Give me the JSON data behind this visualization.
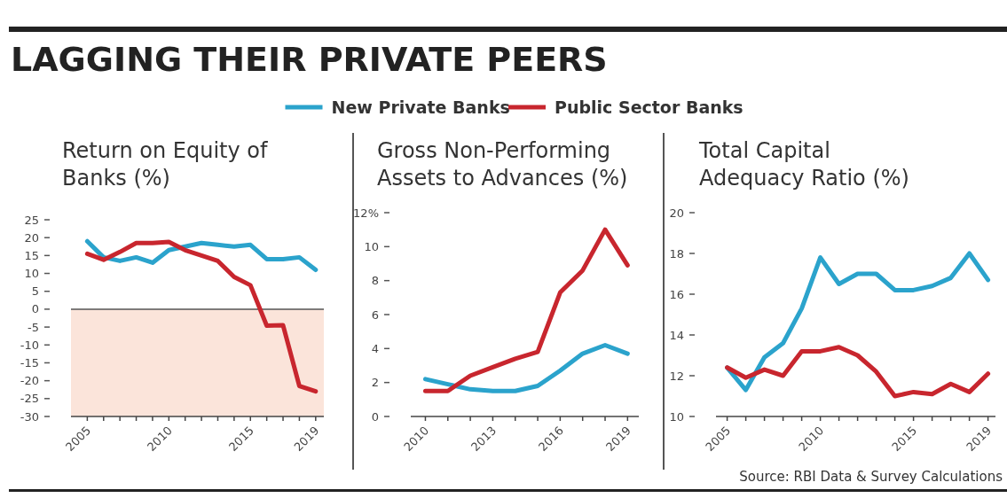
{
  "chart_data": [
    {
      "type": "line",
      "title": "Return on Equity of\nBanks (%)",
      "annotations": [
        "LAGGING THEIR PRIVATE PEERS"
      ],
      "legend": "top",
      "x": [
        2005,
        2006,
        2007,
        2008,
        2009,
        2010,
        2011,
        2012,
        2013,
        2014,
        2015,
        2016,
        2017,
        2018,
        2019
      ],
      "series": [
        {
          "name": "New Private Banks",
          "color": "#2ba3cc",
          "values": [
            19,
            14.5,
            13.5,
            14.5,
            13,
            16.5,
            17.5,
            18.5,
            18,
            17.5,
            18,
            14,
            14,
            14.5,
            11
          ]
        },
        {
          "name": "Public Sector Banks",
          "color": "#c8262e",
          "values": [
            15.5,
            13.8,
            16,
            18.5,
            18.5,
            18.8,
            16.5,
            15,
            13.5,
            9,
            6.7,
            -4.6,
            -4.5,
            -21.5,
            -23
          ]
        }
      ],
      "xlim": [
        2004,
        2019.5
      ],
      "xticks": [
        2005,
        {
          "value": 2006,
          "label": null
        },
        {
          "value": 2007,
          "label": null
        },
        {
          "value": 2008,
          "label": null
        },
        {
          "value": 2009,
          "label": null
        },
        2010,
        {
          "value": 2011,
          "label": null
        },
        {
          "value": 2012,
          "label": null
        },
        {
          "value": 2013,
          "label": null
        },
        {
          "value": 2014,
          "label": null
        },
        2015,
        {
          "value": 2016,
          "label": null
        },
        {
          "value": 2017,
          "label": null
        },
        {
          "value": 2018,
          "label": null
        },
        2019
      ],
      "ylim": [
        -30,
        25
      ],
      "yticks": [
        -30,
        -25,
        -20,
        -15,
        -10,
        -5,
        0,
        5,
        10,
        15,
        20,
        25
      ],
      "bands": [
        {
          "axis": "y",
          "from": -30,
          "to": 0,
          "color": "#fbe4da"
        }
      ],
      "ref_lines": [
        {
          "axis": "y",
          "value": 0,
          "color": "#555555"
        }
      ]
    },
    {
      "type": "line",
      "title": "Gross Non-Performing\nAssets to Advances (%)",
      "x": [
        2010,
        2011,
        2012,
        2013,
        2014,
        2015,
        2016,
        2017,
        2018,
        2019
      ],
      "series": [
        {
          "color": "#2ba3cc",
          "values": [
            2.2,
            1.9,
            1.6,
            1.5,
            1.5,
            1.8,
            2.7,
            3.7,
            4.2,
            3.7
          ]
        },
        {
          "color": "#c8262e",
          "values": [
            1.5,
            1.5,
            2.4,
            2.9,
            3.4,
            3.8,
            7.3,
            8.6,
            11,
            8.9
          ]
        }
      ],
      "xlim": [
        2009.35,
        2019.5
      ],
      "xticks": [
        2010,
        {
          "value": 2011,
          "label": null
        },
        {
          "value": 2012,
          "label": null
        },
        2013,
        {
          "value": 2014,
          "label": null
        },
        {
          "value": 2015,
          "label": null
        },
        2016,
        {
          "value": 2017,
          "label": null
        },
        {
          "value": 2018,
          "label": null
        },
        2019
      ],
      "ylim": [
        0,
        12
      ],
      "yticks": [
        0,
        2,
        4,
        6,
        8,
        10,
        {
          "value": 12,
          "label": "12%"
        }
      ]
    },
    {
      "type": "line",
      "title": "Total Capital\nAdequacy Ratio (%)",
      "annotations": [
        "Source: RBI Data & Survey Calculations"
      ],
      "x": [
        2005,
        2006,
        2007,
        2008,
        2009,
        2010,
        2011,
        2012,
        2013,
        2014,
        2015,
        2016,
        2017,
        2018,
        2019
      ],
      "series": [
        {
          "color": "#2ba3cc",
          "values": [
            12.4,
            11.3,
            12.9,
            13.6,
            15.3,
            17.8,
            16.5,
            17,
            17,
            16.2,
            16.2,
            16.4,
            16.8,
            18,
            16.7
          ]
        },
        {
          "color": "#c8262e",
          "values": [
            12.4,
            11.9,
            12.3,
            12,
            13.2,
            13.2,
            13.4,
            13,
            12.2,
            11,
            11.2,
            11.1,
            11.6,
            11.2,
            12.1
          ]
        }
      ],
      "xlim": [
        2004.4,
        2019.4
      ],
      "xticks": [
        2005,
        {
          "value": 2006,
          "label": null
        },
        {
          "value": 2007,
          "label": null
        },
        {
          "value": 2008,
          "label": null
        },
        {
          "value": 2009,
          "label": null
        },
        2010,
        {
          "value": 2011,
          "label": null
        },
        {
          "value": 2012,
          "label": null
        },
        {
          "value": 2013,
          "label": null
        },
        {
          "value": 2014,
          "label": null
        },
        2015,
        {
          "value": 2016,
          "label": null
        },
        {
          "value": 2017,
          "label": null
        },
        {
          "value": 2018,
          "label": null
        },
        2019
      ],
      "ylim": [
        10,
        20
      ],
      "yticks": [
        10,
        12,
        14,
        16,
        18,
        20
      ]
    }
  ]
}
